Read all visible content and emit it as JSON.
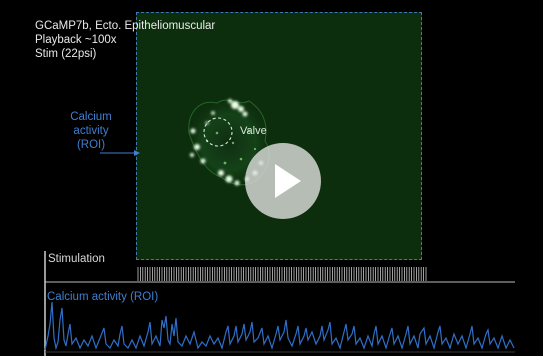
{
  "header": {
    "line1": "GCaMP7b, Ecto. Epitheliomuscular",
    "line2": "Playback ~100x",
    "line3": "Stim (22psi)"
  },
  "annotations": {
    "calcium_note": [
      "Calcium",
      "activity",
      "(ROI)"
    ],
    "valve": "Valve"
  },
  "tracks": {
    "stimulation_label": "Stimulation",
    "calcium_label": "Calcium activity (ROI)"
  },
  "colors": {
    "text": "#e9e9e9",
    "accent_blue": "#3f7fd0",
    "roi_border": "#3f78b8",
    "trace_blue": "#2f6fc8",
    "stim_ticks": "#c8c8c8"
  },
  "controls": {
    "play_icon": "play-icon"
  }
}
